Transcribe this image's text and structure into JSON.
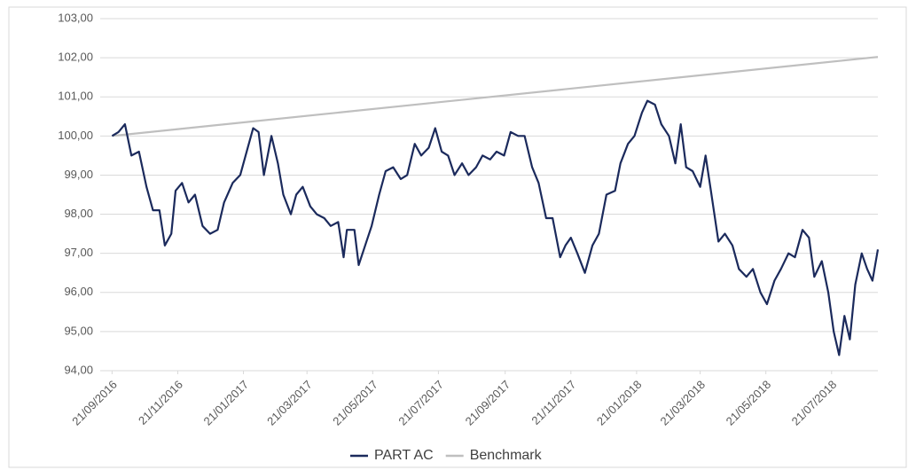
{
  "chart_data": {
    "type": "line",
    "series": [
      {
        "name": "PART AC",
        "color": "#1b2a5c",
        "x": [
          "2016-09-21",
          "2016-09-27",
          "2016-10-03",
          "2016-10-09",
          "2016-10-16",
          "2016-10-23",
          "2016-10-29",
          "2016-11-04",
          "2016-11-09",
          "2016-11-15",
          "2016-11-19",
          "2016-11-25",
          "2016-12-01",
          "2016-12-07",
          "2016-12-14",
          "2016-12-21",
          "2016-12-28",
          "2017-01-03",
          "2017-01-11",
          "2017-01-18",
          "2017-01-25",
          "2017-01-30",
          "2017-02-04",
          "2017-02-09",
          "2017-02-16",
          "2017-02-22",
          "2017-02-27",
          "2017-03-06",
          "2017-03-11",
          "2017-03-17",
          "2017-03-24",
          "2017-03-30",
          "2017-04-06",
          "2017-04-12",
          "2017-04-19",
          "2017-04-24",
          "2017-04-27",
          "2017-05-04",
          "2017-05-08",
          "2017-05-14",
          "2017-05-20",
          "2017-05-27",
          "2017-06-02",
          "2017-06-09",
          "2017-06-16",
          "2017-06-22",
          "2017-06-29",
          "2017-07-05",
          "2017-07-12",
          "2017-07-18",
          "2017-07-24",
          "2017-07-30",
          "2017-08-05",
          "2017-08-12",
          "2017-08-18",
          "2017-08-25",
          "2017-08-31",
          "2017-09-07",
          "2017-09-13",
          "2017-09-20",
          "2017-09-26",
          "2017-10-03",
          "2017-10-09",
          "2017-10-16",
          "2017-10-22",
          "2017-10-29",
          "2017-11-04",
          "2017-11-11",
          "2017-11-16",
          "2017-11-21",
          "2017-11-27",
          "2017-12-04",
          "2017-12-11",
          "2017-12-17",
          "2017-12-24",
          "2018-01-01",
          "2018-01-06",
          "2018-01-13",
          "2018-01-19",
          "2018-01-26",
          "2018-01-31",
          "2018-02-07",
          "2018-02-13",
          "2018-02-20",
          "2018-02-26",
          "2018-03-03",
          "2018-03-08",
          "2018-03-14",
          "2018-03-21",
          "2018-03-26",
          "2018-03-31",
          "2018-04-07",
          "2018-04-13",
          "2018-04-20",
          "2018-04-26",
          "2018-05-03",
          "2018-05-09",
          "2018-05-16",
          "2018-05-22",
          "2018-05-29",
          "2018-06-04",
          "2018-06-11",
          "2018-06-17",
          "2018-06-24",
          "2018-06-30",
          "2018-07-05",
          "2018-07-12",
          "2018-07-18",
          "2018-07-23",
          "2018-07-28",
          "2018-08-02",
          "2018-08-07",
          "2018-08-12",
          "2018-08-18",
          "2018-08-23",
          "2018-08-28",
          "2018-09-02"
        ],
        "values": [
          100.0,
          100.1,
          100.3,
          99.5,
          99.6,
          98.7,
          98.1,
          98.1,
          97.2,
          97.5,
          98.6,
          98.8,
          98.3,
          98.5,
          97.7,
          97.5,
          97.6,
          98.3,
          98.8,
          99.0,
          99.7,
          100.2,
          100.1,
          99.0,
          100.0,
          99.3,
          98.5,
          98.0,
          98.5,
          98.7,
          98.2,
          98.0,
          97.9,
          97.7,
          97.8,
          96.9,
          97.6,
          97.6,
          96.7,
          97.2,
          97.7,
          98.5,
          99.1,
          99.2,
          98.9,
          99.0,
          99.8,
          99.5,
          99.7,
          100.2,
          99.6,
          99.5,
          99.0,
          99.3,
          99.0,
          99.2,
          99.5,
          99.4,
          99.6,
          99.5,
          100.1,
          100.0,
          100.0,
          99.2,
          98.8,
          97.9,
          97.9,
          96.9,
          97.2,
          97.4,
          97.0,
          96.5,
          97.2,
          97.5,
          98.5,
          98.6,
          99.3,
          99.8,
          100.0,
          100.6,
          100.9,
          100.8,
          100.3,
          100.0,
          99.3,
          100.3,
          99.2,
          99.1,
          98.7,
          99.5,
          98.6,
          97.3,
          97.5,
          97.2,
          96.6,
          96.4,
          96.6,
          96.0,
          95.7,
          96.3,
          96.6,
          97.0,
          96.9,
          97.6,
          97.4,
          96.4,
          96.8,
          96.0,
          95.0,
          94.4,
          95.4,
          94.8,
          96.2,
          97.0,
          96.6,
          96.3,
          97.1
        ]
      },
      {
        "name": "Benchmark",
        "color": "#bfbfbf",
        "x": [
          "2016-09-21",
          "2018-09-02"
        ],
        "values": [
          100.0,
          102.02
        ]
      }
    ],
    "xlim": [
      "2016-09-10",
      "2018-09-02"
    ],
    "xticks": [
      {
        "value": "2016-09-21",
        "label": "21/09/2016"
      },
      {
        "value": "2016-11-21",
        "label": "21/11/2016"
      },
      {
        "value": "2017-01-21",
        "label": "21/01/2017"
      },
      {
        "value": "2017-03-21",
        "label": "21/03/2017"
      },
      {
        "value": "2017-05-21",
        "label": "21/05/2017"
      },
      {
        "value": "2017-07-21",
        "label": "21/07/2017"
      },
      {
        "value": "2017-09-21",
        "label": "21/09/2017"
      },
      {
        "value": "2017-11-21",
        "label": "21/11/2017"
      },
      {
        "value": "2018-01-21",
        "label": "21/01/2018"
      },
      {
        "value": "2018-03-21",
        "label": "21/03/2018"
      },
      {
        "value": "2018-05-21",
        "label": "21/05/2018"
      },
      {
        "value": "2018-07-21",
        "label": "21/07/2018"
      }
    ],
    "ylim": [
      94,
      103
    ],
    "yticks": [
      {
        "value": 94,
        "label": "94,00"
      },
      {
        "value": 95,
        "label": "95,00"
      },
      {
        "value": 96,
        "label": "96,00"
      },
      {
        "value": 97,
        "label": "97,00"
      },
      {
        "value": 98,
        "label": "98,00"
      },
      {
        "value": 99,
        "label": "99,00"
      },
      {
        "value": 100,
        "label": "100,00"
      },
      {
        "value": 101,
        "label": "101,00"
      },
      {
        "value": 102,
        "label": "102,00"
      },
      {
        "value": 103,
        "label": "103,00"
      }
    ],
    "grid": true,
    "legend": "bottom"
  }
}
